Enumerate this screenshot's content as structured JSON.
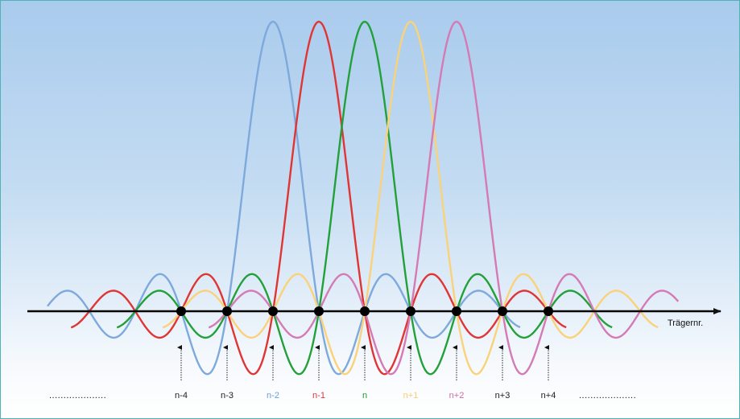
{
  "axis": {
    "label": "Trägernr."
  },
  "carriers": [
    {
      "label": "n-4",
      "color": "#222222"
    },
    {
      "label": "n-3",
      "color": "#222222"
    },
    {
      "label": "n-2",
      "color": "#6a9fd8"
    },
    {
      "label": "n-1",
      "color": "#e03535"
    },
    {
      "label": "n",
      "color": "#1e9a2e"
    },
    {
      "label": "n+1",
      "color": "#f7cf72"
    },
    {
      "label": "n+2",
      "color": "#d46aa8"
    },
    {
      "label": "n+3",
      "color": "#222222"
    },
    {
      "label": "n+4",
      "color": "#222222"
    }
  ],
  "curves": [
    {
      "name": "sinc-n-2",
      "color": "#7ea9dc",
      "peak_index": 2
    },
    {
      "name": "sinc-n-1",
      "color": "#e03535",
      "peak_index": 3
    },
    {
      "name": "sinc-n",
      "color": "#23a03a",
      "peak_index": 4
    },
    {
      "name": "sinc-n+1",
      "color": "#f9d27a",
      "peak_index": 5
    },
    {
      "name": "sinc-n+2",
      "color": "#d47ab4",
      "peak_index": 6
    }
  ],
  "dots_left": "....................",
  "dots_right": "...................."
}
